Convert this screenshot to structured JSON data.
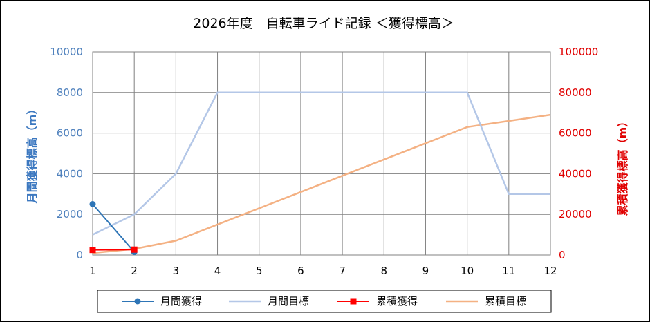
{
  "chart_data": {
    "type": "line",
    "title": "2026年度　自転車ライド記録 ＜獲得標高＞",
    "x": [
      1,
      2,
      3,
      4,
      5,
      6,
      7,
      8,
      9,
      10,
      11,
      12
    ],
    "xlim": [
      1,
      12
    ],
    "y_left": {
      "label": "月間獲得標高（m）",
      "ylim": [
        0,
        10000
      ],
      "ticks": [
        0,
        2000,
        4000,
        6000,
        8000,
        10000
      ],
      "color": "#4f81bd"
    },
    "y_right": {
      "label": "累積獲得標高（m）",
      "ylim": [
        0,
        100000
      ],
      "ticks": [
        0,
        20000,
        40000,
        60000,
        80000,
        100000
      ],
      "color": "#e00000"
    },
    "grid": true,
    "legend_position": "bottom",
    "series": [
      {
        "name": "月間獲得",
        "axis": "left",
        "color": "#2e75b6",
        "marker": "circle",
        "x": [
          1,
          2
        ],
        "values": [
          2500,
          150
        ]
      },
      {
        "name": "月間目標",
        "axis": "left",
        "color": "#b4c7e7",
        "marker": "none",
        "x": [
          1,
          2,
          3,
          4,
          5,
          6,
          7,
          8,
          9,
          10,
          11,
          12
        ],
        "values": [
          1000,
          2000,
          4000,
          8000,
          8000,
          8000,
          8000,
          8000,
          8000,
          8000,
          3000,
          3000
        ]
      },
      {
        "name": "累積獲得",
        "axis": "right",
        "color": "#ff0000",
        "marker": "square",
        "x": [
          1,
          2
        ],
        "values": [
          2500,
          2650
        ]
      },
      {
        "name": "累積目標",
        "axis": "right",
        "color": "#f4b183",
        "marker": "none",
        "x": [
          1,
          2,
          3,
          4,
          5,
          6,
          7,
          8,
          9,
          10,
          11,
          12
        ],
        "values": [
          1000,
          3000,
          7000,
          15000,
          23000,
          31000,
          39000,
          47000,
          55000,
          63000,
          66000,
          69000
        ]
      }
    ]
  }
}
